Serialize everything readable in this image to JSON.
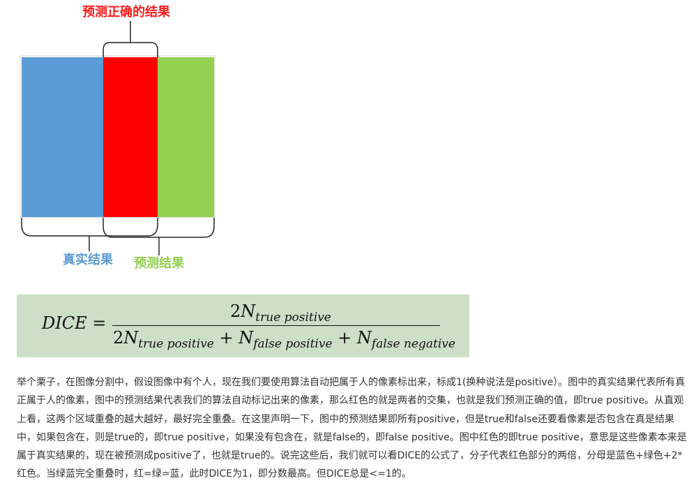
{
  "diagram": {
    "label_correct": "预测正确的结果",
    "label_truth": "真实结果",
    "label_prediction": "预测结果",
    "colors": {
      "blue": "#5b9bd5",
      "red": "#ff0000",
      "green": "#92d050",
      "label_red": "#ff1a1a"
    }
  },
  "formula": {
    "lhs": "DICE",
    "equals": "=",
    "two": "2",
    "n": "N",
    "plus": "+",
    "sub_tp": "true positive",
    "sub_fp": "false positive",
    "sub_fn": "false negative",
    "background": "#cddfc6"
  },
  "paragraph": {
    "text": "举个栗子，在图像分割中，假设图像中有个人，现在我们要使用算法自动把属于人的像素标出来，标成1(换种说法是positive）。图中的真实结果代表所有真正属于人的像素，图中的预测结果代表我们的算法自动标记出来的像素，那么红色的就是两者的交集，也就是我们预测正确的值，即true positive。从直观上看，这两个区域重叠的越大越好，最好完全重叠。在这里声明一下，图中的预测结果即所有positive，但是true和false还要看像素是否包含在真是结果中，如果包含在，则是true的，即true positive，如果没有包含在，就是false的，即false positive。图中红色的即true  positive，意思是这些像素本来是属于真实结果的，现在被预测成positive了，也就是true的。说完这些后，我们就可以看DICE的公式了，分子代表红色部分的两倍，分母是蓝色+绿色+2*红色。当绿蓝完全重叠时，红=绿=蓝，此时DICE为1，即分数最高。但DICE总是<=1的。"
  }
}
